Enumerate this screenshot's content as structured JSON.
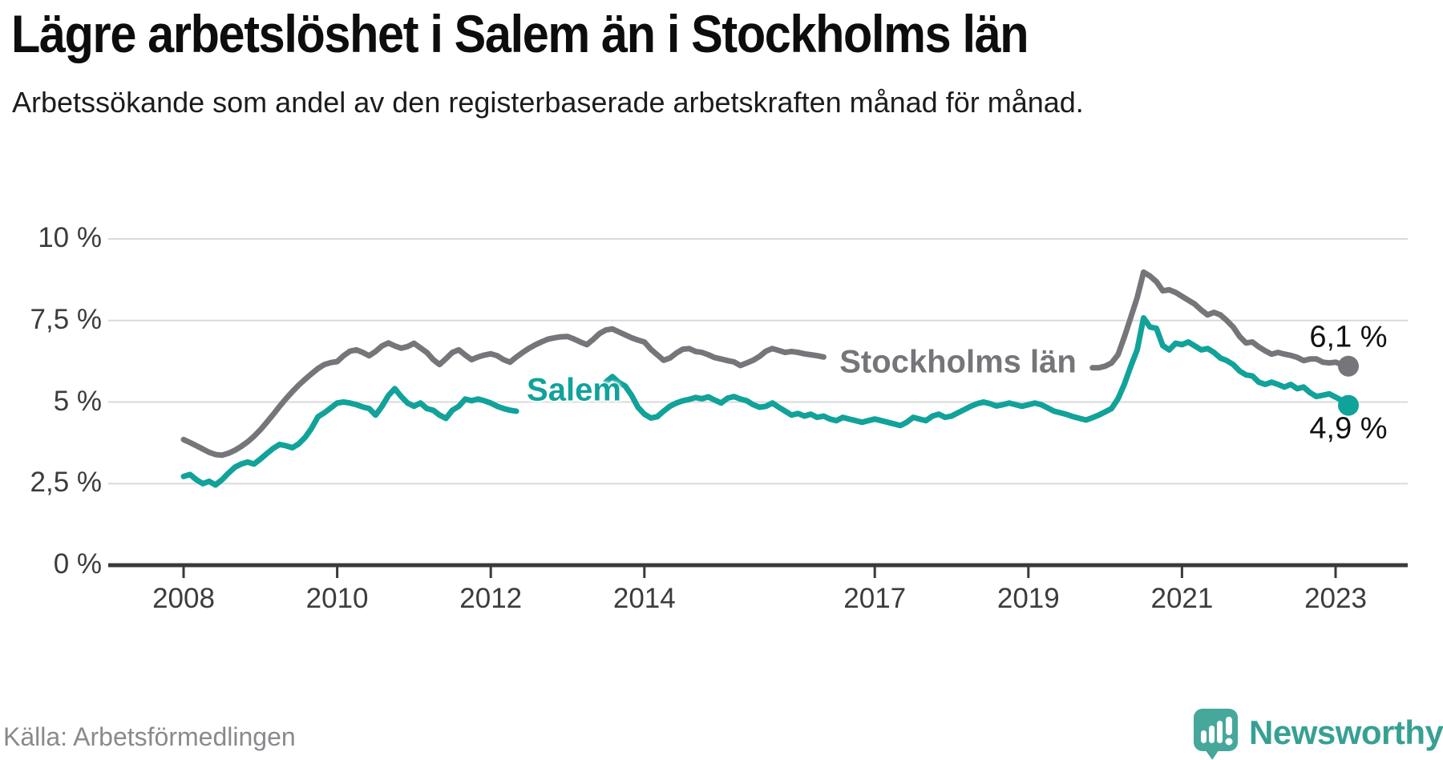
{
  "title": "Lägre arbetslöshet i Salem än i Stockholms län",
  "subtitle": "Arbetssökande som andel av den registerbaserade arbetskraften månad för månad.",
  "source": "Källa: Arbetsförmedlingen",
  "logo": {
    "brand": "Newsworthy",
    "icon": "speech-bubble-bar-chart-icon",
    "teal": "#37a093"
  },
  "colors": {
    "salem_line": "#11a29a",
    "stockholm_line": "#76757a",
    "gridline": "#dadada",
    "axis": "#3a3a3a",
    "text_dark": "#1c1c1c",
    "tick_text": "#3c3c3c",
    "source_text": "#8a898e"
  },
  "chart_data": {
    "type": "line",
    "title": "Lägre arbetslöshet i Salem än i Stockholms län",
    "x_start": "2008-01",
    "x_end": "2023-03",
    "x_unit": "month",
    "grid": "horizontal",
    "legend_position": "inline-labels",
    "x_tick_labels": [
      "2008",
      "2010",
      "2012",
      "2014",
      "2017",
      "2019",
      "2021",
      "2023"
    ],
    "x_tick_months": [
      0,
      24,
      48,
      72,
      108,
      132,
      156,
      180
    ],
    "y_tick_labels": [
      "0 %",
      "2,5 %",
      "5 %",
      "7,5 %",
      "10 %"
    ],
    "y_tick_values": [
      0,
      2.5,
      5,
      7.5,
      10
    ],
    "ylim": [
      0,
      10.8
    ],
    "series": [
      {
        "name": "Stockholms län",
        "color": "#76757a",
        "end_label": "6,1 %",
        "note": "line hidden behind its name label from mid-2016 to late 2019",
        "values": [
          3.85,
          3.76,
          3.66,
          3.56,
          3.46,
          3.39,
          3.37,
          3.43,
          3.52,
          3.64,
          3.78,
          3.95,
          4.15,
          4.38,
          4.62,
          4.87,
          5.1,
          5.32,
          5.52,
          5.7,
          5.87,
          6.03,
          6.15,
          6.21,
          6.24,
          6.42,
          6.56,
          6.6,
          6.52,
          6.42,
          6.55,
          6.72,
          6.81,
          6.72,
          6.65,
          6.7,
          6.8,
          6.66,
          6.52,
          6.3,
          6.15,
          6.33,
          6.52,
          6.6,
          6.44,
          6.3,
          6.38,
          6.44,
          6.48,
          6.42,
          6.3,
          6.22,
          6.38,
          6.52,
          6.65,
          6.76,
          6.85,
          6.93,
          6.97,
          7.0,
          7.01,
          6.93,
          6.84,
          6.76,
          6.92,
          7.1,
          7.21,
          7.24,
          7.15,
          7.06,
          6.97,
          6.9,
          6.84,
          6.62,
          6.45,
          6.28,
          6.35,
          6.5,
          6.62,
          6.64,
          6.55,
          6.52,
          6.45,
          6.36,
          6.32,
          6.27,
          6.23,
          6.12,
          6.2,
          6.28,
          6.4,
          6.56,
          6.64,
          6.58,
          6.52,
          6.55,
          6.52,
          6.48,
          6.45,
          6.42,
          6.38,
          null,
          null,
          null,
          null,
          null,
          null,
          null,
          null,
          null,
          null,
          null,
          null,
          null,
          null,
          null,
          null,
          null,
          null,
          null,
          null,
          null,
          null,
          null,
          null,
          null,
          null,
          null,
          null,
          null,
          null,
          null,
          null,
          null,
          null,
          null,
          null,
          null,
          null,
          null,
          null,
          null,
          6.05,
          6.05,
          6.1,
          6.2,
          6.45,
          7.0,
          7.6,
          8.2,
          8.98,
          8.86,
          8.69,
          8.41,
          8.44,
          8.36,
          8.24,
          8.12,
          8.0,
          7.82,
          7.67,
          7.75,
          7.67,
          7.5,
          7.3,
          7.01,
          6.81,
          6.84,
          6.69,
          6.57,
          6.47,
          6.52,
          6.47,
          6.43,
          6.37,
          6.27,
          6.32,
          6.32,
          6.22,
          6.2,
          6.22,
          6.15,
          6.1
        ]
      },
      {
        "name": "Salem",
        "color": "#11a29a",
        "end_label": "4,9 %",
        "note": "line hidden behind its name label from mid-2012 to mid-2013",
        "values": [
          2.72,
          2.78,
          2.62,
          2.5,
          2.57,
          2.46,
          2.62,
          2.82,
          3.0,
          3.1,
          3.16,
          3.1,
          3.25,
          3.42,
          3.58,
          3.7,
          3.66,
          3.6,
          3.72,
          3.92,
          4.2,
          4.55,
          4.67,
          4.82,
          4.97,
          5.0,
          4.97,
          4.92,
          4.85,
          4.8,
          4.6,
          4.87,
          5.2,
          5.41,
          5.17,
          4.97,
          4.87,
          4.97,
          4.8,
          4.75,
          4.6,
          4.5,
          4.75,
          4.87,
          5.09,
          5.04,
          5.09,
          5.04,
          4.97,
          4.87,
          4.8,
          4.75,
          4.72,
          null,
          null,
          null,
          null,
          null,
          null,
          null,
          null,
          null,
          null,
          null,
          null,
          null,
          5.62,
          5.78,
          5.6,
          5.49,
          5.21,
          4.84,
          4.63,
          4.51,
          4.55,
          4.72,
          4.87,
          4.97,
          5.04,
          5.08,
          5.14,
          5.1,
          5.16,
          5.06,
          4.97,
          5.12,
          5.17,
          5.09,
          5.04,
          4.92,
          4.84,
          4.87,
          4.97,
          4.84,
          4.72,
          4.6,
          4.65,
          4.57,
          4.63,
          4.53,
          4.57,
          4.48,
          4.43,
          4.53,
          4.48,
          4.43,
          4.38,
          4.43,
          4.48,
          4.43,
          4.38,
          4.33,
          4.28,
          4.38,
          4.53,
          4.48,
          4.43,
          4.57,
          4.63,
          4.53,
          4.57,
          4.67,
          4.77,
          4.87,
          4.95,
          5.0,
          4.95,
          4.88,
          4.92,
          4.97,
          4.92,
          4.87,
          4.92,
          4.97,
          4.92,
          4.82,
          4.72,
          4.67,
          4.62,
          4.55,
          4.5,
          4.45,
          4.52,
          4.6,
          4.7,
          4.8,
          5.1,
          5.55,
          6.1,
          6.6,
          7.58,
          7.3,
          7.26,
          6.73,
          6.6,
          6.8,
          6.76,
          6.84,
          6.72,
          6.6,
          6.64,
          6.52,
          6.35,
          6.27,
          6.15,
          5.95,
          5.83,
          5.8,
          5.61,
          5.54,
          5.61,
          5.54,
          5.46,
          5.54,
          5.41,
          5.46,
          5.29,
          5.17,
          5.21,
          5.25,
          5.15,
          5.05,
          4.9
        ]
      }
    ],
    "series_labels": [
      {
        "text": "Stockholms län",
        "month": 121,
        "value": 6.22,
        "color": "#76757a"
      },
      {
        "text": "Salem",
        "month": 61,
        "value": 5.36,
        "color": "#11a29a"
      }
    ],
    "end_labels": [
      {
        "text": "6,1 %",
        "month": 182,
        "value": 6.1,
        "dy": -36
      },
      {
        "text": "4,9 %",
        "month": 182,
        "value": 4.9,
        "dy": 29
      }
    ]
  }
}
